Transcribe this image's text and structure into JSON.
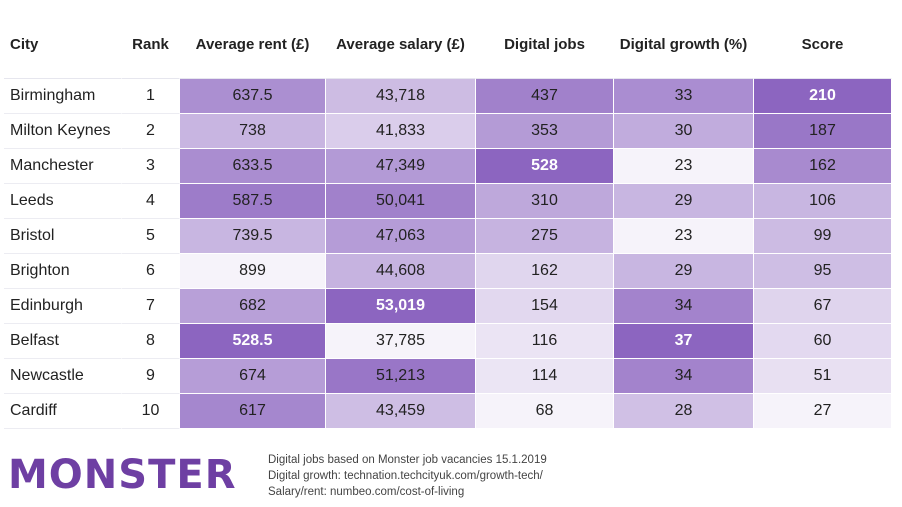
{
  "chart_data": {
    "type": "table",
    "columns": [
      "City",
      "Rank",
      "Average rent (£)",
      "Average salary (£)",
      "Digital jobs",
      "Digital growth (%)",
      "Score"
    ],
    "rows": [
      {
        "city": "Birmingham",
        "rank": "1",
        "rent": "637.5",
        "salary": "43,718",
        "jobs": "437",
        "growth": "33",
        "score": "210"
      },
      {
        "city": "Milton Keynes",
        "rank": "2",
        "rent": "738",
        "salary": "41,833",
        "jobs": "353",
        "growth": "30",
        "score": "187"
      },
      {
        "city": "Manchester",
        "rank": "3",
        "rent": "633.5",
        "salary": "47,349",
        "jobs": "528",
        "growth": "23",
        "score": "162"
      },
      {
        "city": "Leeds",
        "rank": "4",
        "rent": "587.5",
        "salary": "50,041",
        "jobs": "310",
        "growth": "29",
        "score": "106"
      },
      {
        "city": "Bristol",
        "rank": "5",
        "rent": "739.5",
        "salary": "47,063",
        "jobs": "275",
        "growth": "23",
        "score": "99"
      },
      {
        "city": "Brighton",
        "rank": "6",
        "rent": "899",
        "salary": "44,608",
        "jobs": "162",
        "growth": "29",
        "score": "95"
      },
      {
        "city": "Edinburgh",
        "rank": "7",
        "rent": "682",
        "salary": "53,019",
        "jobs": "154",
        "growth": "34",
        "score": "67"
      },
      {
        "city": "Belfast",
        "rank": "8",
        "rent": "528.5",
        "salary": "37,785",
        "jobs": "116",
        "growth": "37",
        "score": "60"
      },
      {
        "city": "Newcastle",
        "rank": "9",
        "rent": "674",
        "salary": "51,213",
        "jobs": "114",
        "growth": "34",
        "score": "51"
      },
      {
        "city": "Cardiff",
        "rank": "10",
        "rent": "617",
        "salary": "43,459",
        "jobs": "68",
        "growth": "28",
        "score": "27"
      }
    ],
    "color_scale": {
      "low": "#ffffff",
      "high": "#8c65c0"
    }
  },
  "logo_text": "MONSTER",
  "sources": [
    "Digital jobs based on Monster job vacancies 15.1.2019",
    "Digital growth: technation.techcityuk.com/growth-tech/",
    "Salary/rent: numbeo.com/cost-of-living"
  ]
}
